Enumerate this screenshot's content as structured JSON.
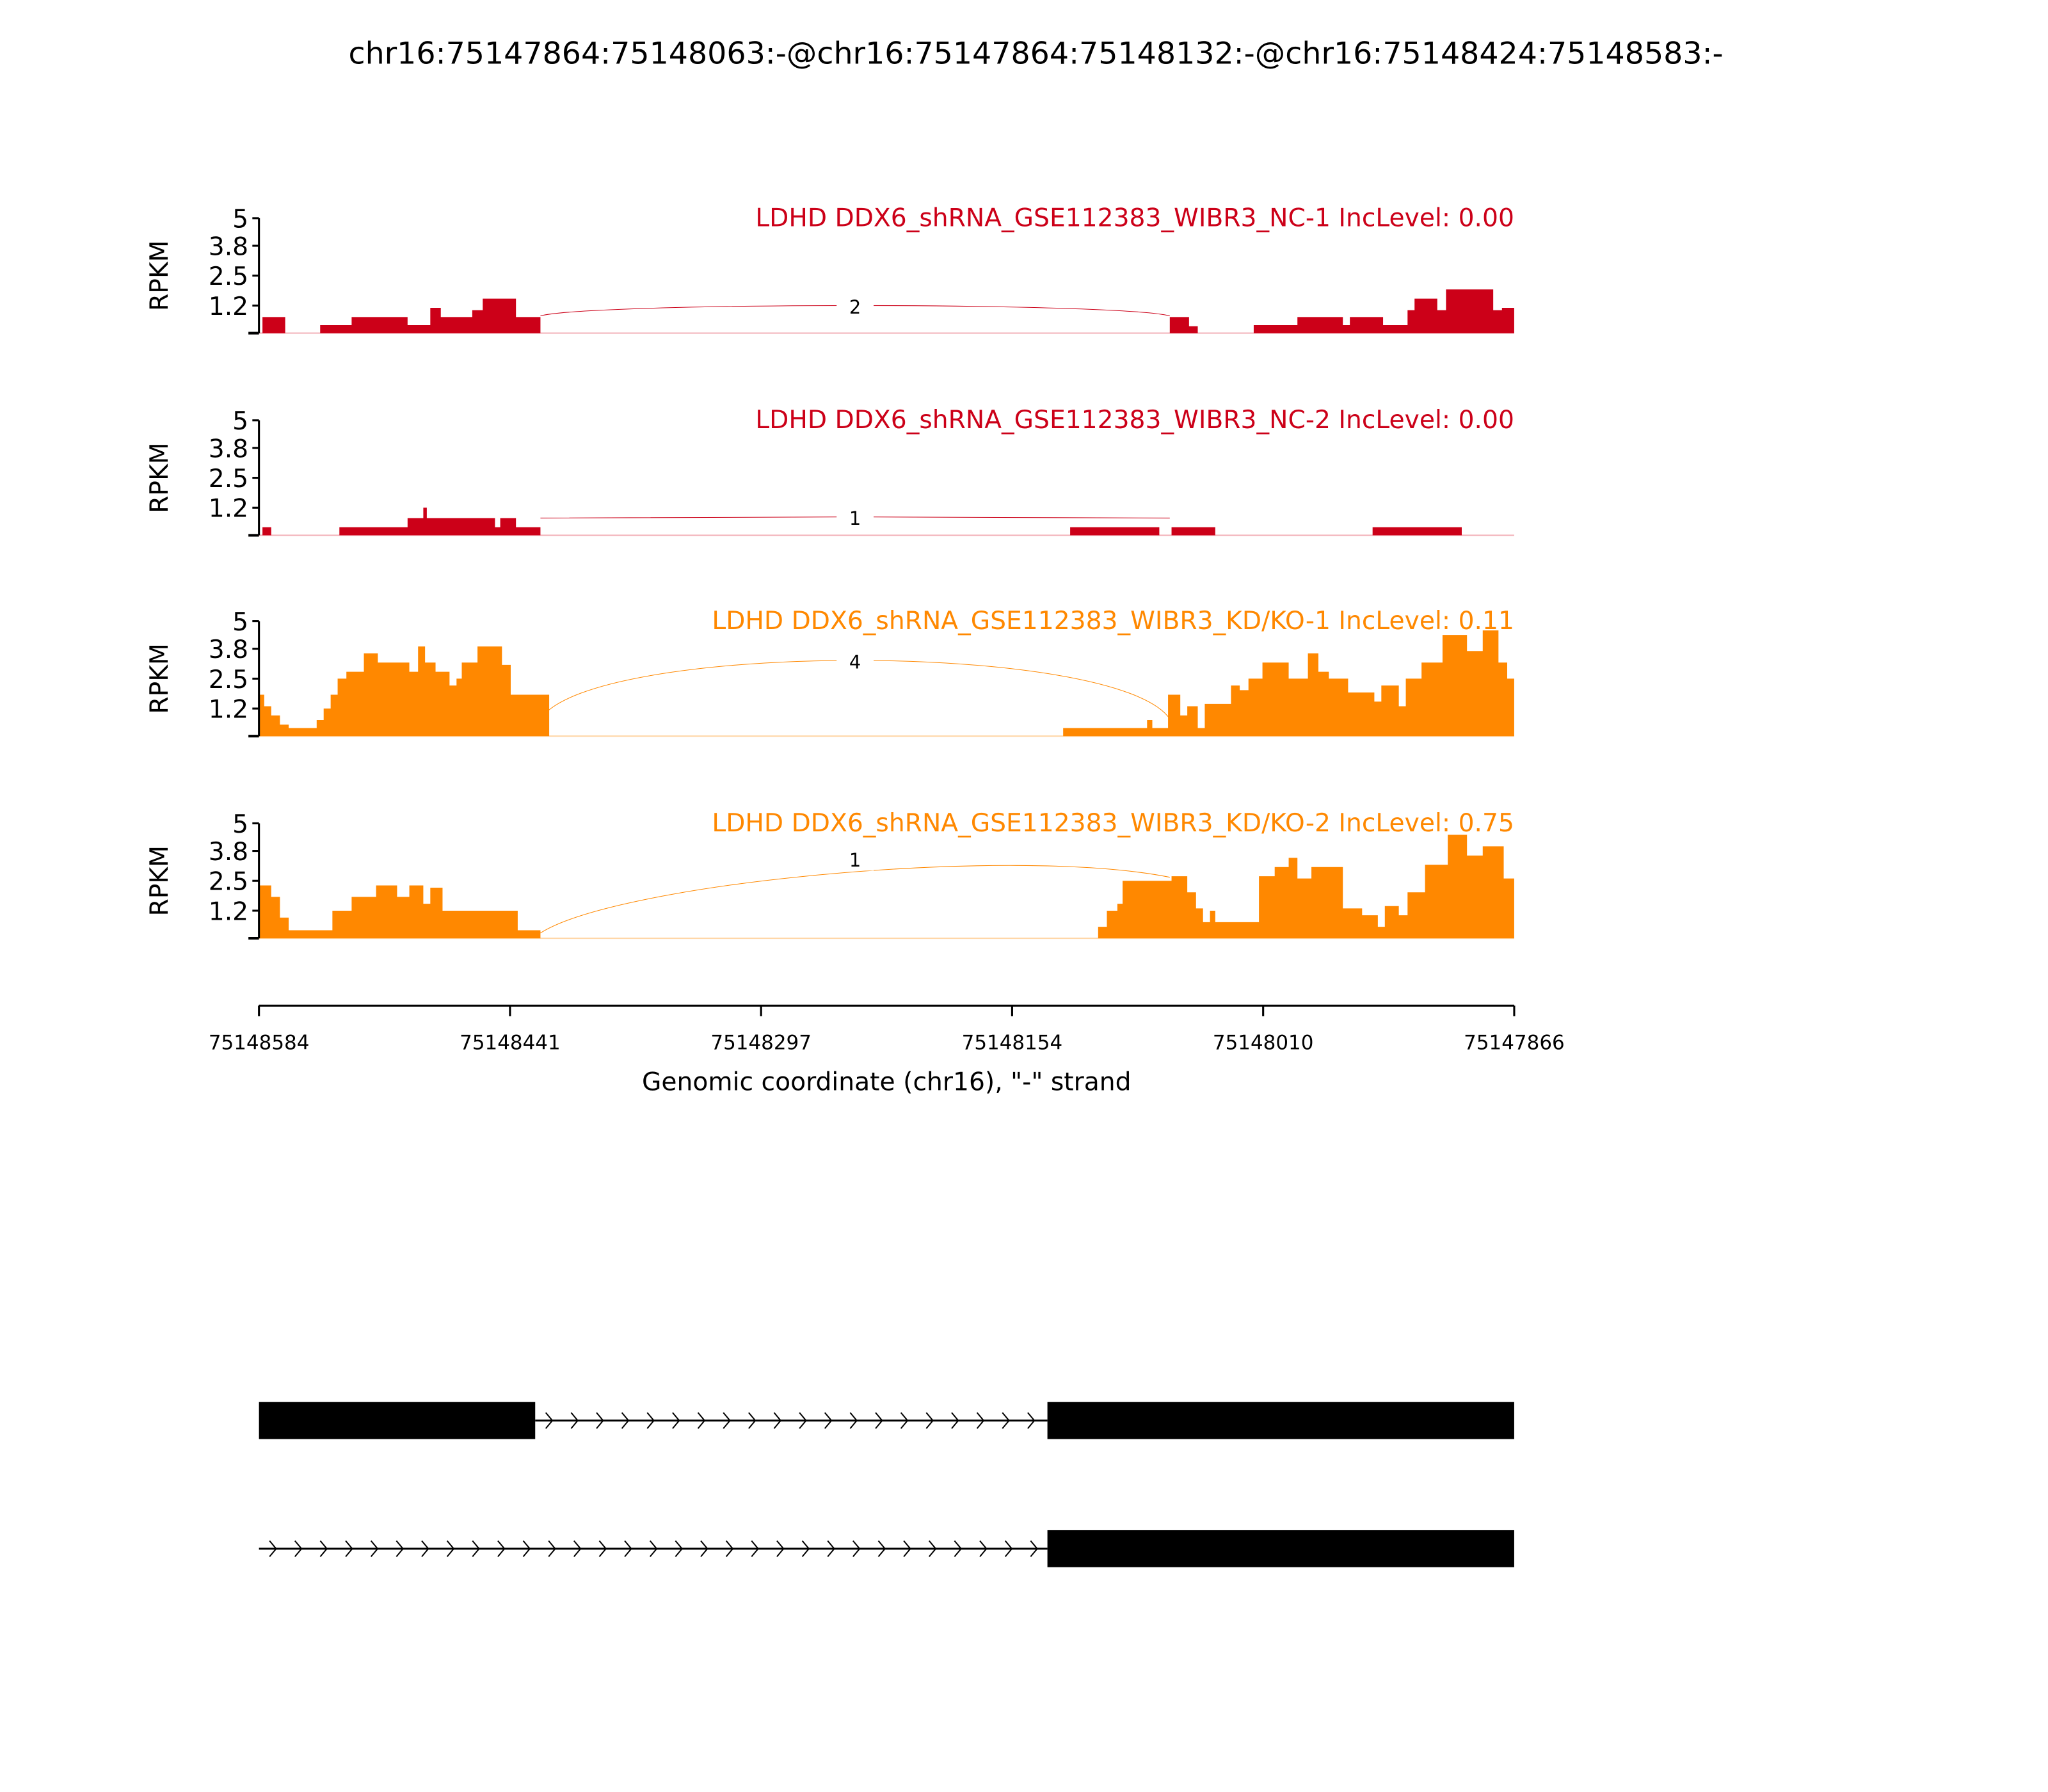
{
  "chart_data": {
    "type": "area",
    "title": "chr16:75147864:75148063:-@chr16:75147864:75148132:-@chr16:75148424:75148583:-",
    "xlabel": "Genomic coordinate (chr16), \"-\" strand",
    "ylabel": "RPKM",
    "x_start": 75148584,
    "x_end": 75147866,
    "x_span_bp": 718,
    "x_ticks": [
      "75148584",
      "75148441",
      "75148297",
      "75148154",
      "75148010",
      "75147866"
    ],
    "y_ticks": [
      "5",
      "3.8",
      "2.5",
      "1.2"
    ],
    "ylim": [
      0,
      5
    ],
    "colors": {
      "nc": "#cc0018",
      "kd": "#ff8800",
      "nc_line": "#f2b0b8",
      "kd_line": "#ffd7a8"
    },
    "tracks": [
      {
        "label": "LDHD DDX6_shRNA_GSE112383_WIBR3_NC-1 IncLevel: 0.00",
        "group": "nc",
        "steps_offset_bp_rpkm": [
          [
            2,
            0.7
          ],
          [
            15,
            0
          ],
          [
            35,
            0.35
          ],
          [
            53,
            0.7
          ],
          [
            85,
            0.35
          ],
          [
            98,
            1.1
          ],
          [
            104,
            0.7
          ],
          [
            122,
            1.0
          ],
          [
            128,
            1.5
          ],
          [
            147,
            0.7
          ],
          [
            161,
            0
          ],
          [
            521,
            0.7
          ],
          [
            532,
            0.3
          ],
          [
            537,
            0
          ],
          [
            569,
            0.35
          ],
          [
            594,
            0.7
          ],
          [
            620,
            0.35
          ],
          [
            624,
            0.7
          ],
          [
            643,
            0.35
          ],
          [
            657,
            1.0
          ],
          [
            661,
            1.5
          ],
          [
            674,
            1.0
          ],
          [
            679,
            1.9
          ],
          [
            706,
            1.0
          ],
          [
            711,
            1.1
          ]
        ],
        "junction": {
          "from_bp": 161,
          "to_bp": 521,
          "count": "2",
          "peak_rpkm": 1.2
        }
      },
      {
        "label": "LDHD DDX6_shRNA_GSE112383_WIBR3_NC-2 IncLevel: 0.00",
        "group": "nc",
        "steps_offset_bp_rpkm": [
          [
            2,
            0.35
          ],
          [
            7,
            0
          ],
          [
            46,
            0.35
          ],
          [
            85,
            0.75
          ],
          [
            94,
            1.2
          ],
          [
            96,
            0.75
          ],
          [
            135,
            0.35
          ],
          [
            138,
            0.75
          ],
          [
            147,
            0.35
          ],
          [
            161,
            0
          ],
          [
            464,
            0.35
          ],
          [
            515,
            0
          ],
          [
            522,
            0.35
          ],
          [
            547,
            0
          ],
          [
            637,
            0.35
          ],
          [
            688,
            0
          ]
        ],
        "junction": {
          "from_bp": 161,
          "to_bp": 521,
          "count": "1",
          "peak_rpkm": 0.8
        }
      },
      {
        "label": "LDHD DDX6_shRNA_GSE112383_WIBR3_KD/KO-1 IncLevel: 0.11",
        "group": "kd",
        "steps_offset_bp_rpkm": [
          [
            0,
            1.8
          ],
          [
            3,
            1.3
          ],
          [
            7,
            0.9
          ],
          [
            12,
            0.5
          ],
          [
            17,
            0.35
          ],
          [
            33,
            0.7
          ],
          [
            37,
            1.2
          ],
          [
            41,
            1.8
          ],
          [
            45,
            2.5
          ],
          [
            50,
            2.8
          ],
          [
            60,
            3.6
          ],
          [
            68,
            3.2
          ],
          [
            86,
            2.8
          ],
          [
            91,
            3.9
          ],
          [
            95,
            3.2
          ],
          [
            101,
            2.8
          ],
          [
            109,
            2.2
          ],
          [
            113,
            2.5
          ],
          [
            116,
            3.2
          ],
          [
            125,
            3.9
          ],
          [
            139,
            3.1
          ],
          [
            144,
            1.8
          ],
          [
            166,
            0
          ],
          [
            460,
            0.35
          ],
          [
            508,
            0.7
          ],
          [
            511,
            0.35
          ],
          [
            520,
            1.8
          ],
          [
            527,
            0.9
          ],
          [
            531,
            1.3
          ],
          [
            537,
            0.35
          ],
          [
            541,
            1.4
          ],
          [
            556,
            2.2
          ],
          [
            561,
            2.0
          ],
          [
            566,
            2.5
          ],
          [
            574,
            3.2
          ],
          [
            589,
            2.5
          ],
          [
            600,
            3.6
          ],
          [
            606,
            2.8
          ],
          [
            612,
            2.5
          ],
          [
            623,
            1.9
          ],
          [
            638,
            1.5
          ],
          [
            642,
            2.2
          ],
          [
            652,
            1.3
          ],
          [
            656,
            2.5
          ],
          [
            665,
            3.2
          ],
          [
            677,
            4.4
          ],
          [
            691,
            3.7
          ],
          [
            700,
            4.6
          ],
          [
            709,
            3.2
          ],
          [
            714,
            2.5
          ]
        ],
        "junction": {
          "from_bp": 161,
          "to_bp": 521,
          "count": "4",
          "peak_rpkm": 3.3
        }
      },
      {
        "label": "LDHD DDX6_shRNA_GSE112383_WIBR3_KD/KO-2 IncLevel: 0.75",
        "group": "kd",
        "steps_offset_bp_rpkm": [
          [
            0,
            2.3
          ],
          [
            7,
            1.8
          ],
          [
            12,
            0.9
          ],
          [
            17,
            0.35
          ],
          [
            42,
            1.2
          ],
          [
            53,
            1.8
          ],
          [
            67,
            2.3
          ],
          [
            79,
            1.8
          ],
          [
            86,
            2.3
          ],
          [
            94,
            1.5
          ],
          [
            98,
            2.2
          ],
          [
            105,
            1.2
          ],
          [
            148,
            0.35
          ],
          [
            161,
            0
          ],
          [
            480,
            0.5
          ],
          [
            485,
            1.2
          ],
          [
            491,
            1.5
          ],
          [
            494,
            2.5
          ],
          [
            522,
            2.7
          ],
          [
            531,
            2.0
          ],
          [
            536,
            1.3
          ],
          [
            540,
            0.7
          ],
          [
            544,
            1.2
          ],
          [
            547,
            0.7
          ],
          [
            572,
            2.7
          ],
          [
            581,
            3.1
          ],
          [
            589,
            3.5
          ],
          [
            594,
            2.6
          ],
          [
            602,
            3.1
          ],
          [
            620,
            1.3
          ],
          [
            631,
            1.0
          ],
          [
            640,
            0.5
          ],
          [
            644,
            1.4
          ],
          [
            652,
            1.0
          ],
          [
            657,
            2.0
          ],
          [
            667,
            3.2
          ],
          [
            680,
            4.5
          ],
          [
            691,
            3.6
          ],
          [
            700,
            4.0
          ],
          [
            712,
            2.6
          ]
        ],
        "junction": {
          "from_bp": 161,
          "to_bp": 521,
          "count": "1",
          "peak_rpkm": 3.0
        }
      }
    ],
    "isoforms": [
      {
        "exons_offset_bp": [
          [
            0,
            158
          ],
          [
            451,
            718
          ]
        ]
      },
      {
        "exons_offset_bp": [
          [
            451,
            718
          ]
        ],
        "intron_from_bp": 0
      }
    ]
  }
}
